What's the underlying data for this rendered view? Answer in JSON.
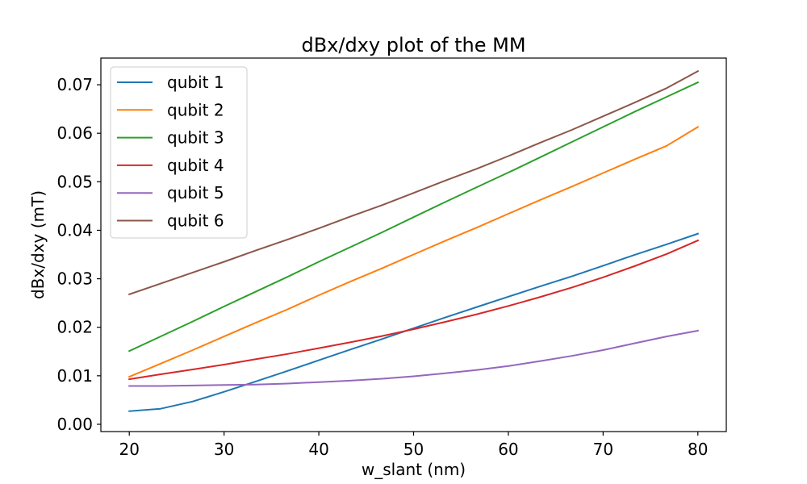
{
  "chart_data": {
    "type": "line",
    "title": "dBx/dxy plot of the MM",
    "xlabel": "w_slant (nm)",
    "ylabel": "dBx/dxy (mT)",
    "xlim": [
      17,
      83
    ],
    "ylim": [
      -0.0015,
      0.0755
    ],
    "xticks": [
      20,
      30,
      40,
      50,
      60,
      70,
      80
    ],
    "yticks": [
      0.0,
      0.01,
      0.02,
      0.03,
      0.04,
      0.05,
      0.06,
      0.07
    ],
    "xtick_labels": [
      "20",
      "30",
      "40",
      "50",
      "60",
      "70",
      "80"
    ],
    "ytick_labels": [
      "0.00",
      "0.01",
      "0.02",
      "0.03",
      "0.04",
      "0.05",
      "0.06",
      "0.07"
    ],
    "grid": false,
    "legend_position": "top-left",
    "x": [
      20,
      23.3,
      26.7,
      30,
      33.3,
      36.7,
      40,
      43.3,
      46.7,
      50,
      53.3,
      56.7,
      60,
      63.3,
      66.7,
      70,
      73.3,
      76.7,
      80
    ],
    "series": [
      {
        "name": "qubit 1",
        "color": "#1f77b4",
        "values": [
          0.0027,
          0.0032,
          0.0047,
          0.0067,
          0.0088,
          0.011,
          0.0132,
          0.0154,
          0.0176,
          0.0198,
          0.022,
          0.0242,
          0.0263,
          0.0284,
          0.0305,
          0.0327,
          0.0349,
          0.0371,
          0.0393
        ]
      },
      {
        "name": "qubit 2",
        "color": "#ff7f0e",
        "values": [
          0.0098,
          0.0125,
          0.0153,
          0.0181,
          0.0209,
          0.0237,
          0.0266,
          0.0294,
          0.0322,
          0.035,
          0.0378,
          0.0406,
          0.0434,
          0.0462,
          0.049,
          0.0518,
          0.0546,
          0.0574,
          0.0613
        ]
      },
      {
        "name": "qubit 3",
        "color": "#2ca02c",
        "values": [
          0.0151,
          0.0181,
          0.0212,
          0.0243,
          0.0273,
          0.0304,
          0.0335,
          0.0365,
          0.0396,
          0.0427,
          0.0458,
          0.0489,
          0.0519,
          0.055,
          0.0582,
          0.0613,
          0.0644,
          0.0675,
          0.0705
        ]
      },
      {
        "name": "qubit 4",
        "color": "#d62728",
        "values": [
          0.0093,
          0.0103,
          0.0113,
          0.0123,
          0.0134,
          0.0145,
          0.0157,
          0.0169,
          0.0182,
          0.0196,
          0.0211,
          0.0227,
          0.0244,
          0.0262,
          0.0282,
          0.0303,
          0.0326,
          0.0351,
          0.0379
        ]
      },
      {
        "name": "qubit 5",
        "color": "#9467bd",
        "values": [
          0.0079,
          0.0079,
          0.008,
          0.0081,
          0.0082,
          0.0084,
          0.0087,
          0.009,
          0.0094,
          0.0099,
          0.0105,
          0.0112,
          0.012,
          0.013,
          0.0141,
          0.0153,
          0.0167,
          0.0181,
          0.0193
        ]
      },
      {
        "name": "qubit 6",
        "color": "#8c564b",
        "values": [
          0.0268,
          0.029,
          0.0313,
          0.0335,
          0.0358,
          0.0381,
          0.0404,
          0.0428,
          0.0452,
          0.0477,
          0.0502,
          0.0527,
          0.0553,
          0.058,
          0.0607,
          0.0635,
          0.0663,
          0.0693,
          0.0728
        ]
      }
    ]
  }
}
